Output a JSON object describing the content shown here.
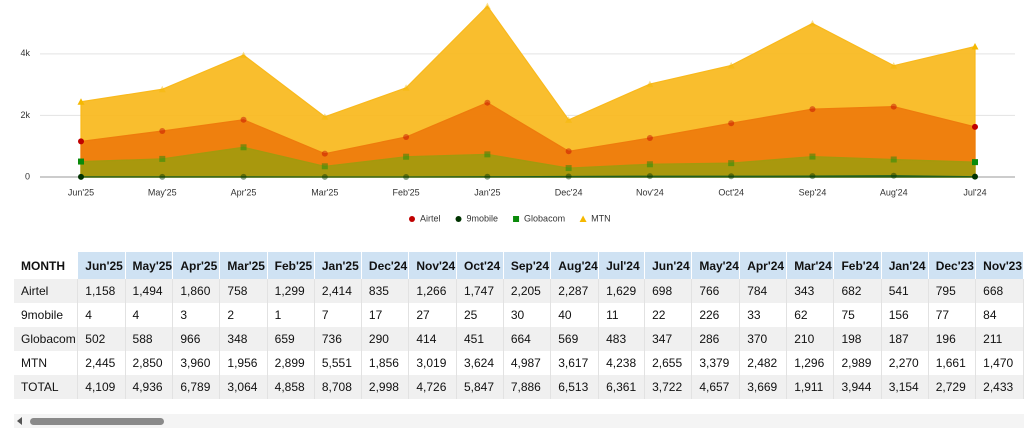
{
  "chart_data": {
    "type": "area",
    "categories": [
      "Jun'25",
      "May'25",
      "Apr'25",
      "Mar'25",
      "Feb'25",
      "Jan'25",
      "Dec'24",
      "Nov'24",
      "Oct'24",
      "Sep'24",
      "Aug'24",
      "Jul'24"
    ],
    "series": [
      {
        "name": "Airtel",
        "color": "#ee7b0c",
        "marker_color": "#c00000",
        "marker": "circle",
        "values": [
          1158,
          1494,
          1860,
          758,
          1299,
          2414,
          835,
          1266,
          1747,
          2205,
          2287,
          1629
        ]
      },
      {
        "name": "9mobile",
        "color": "#1f5f1f",
        "marker_color": "#003300",
        "marker": "circle",
        "values": [
          4,
          4,
          3,
          2,
          1,
          7,
          17,
          27,
          25,
          30,
          40,
          11
        ]
      },
      {
        "name": "Globacom",
        "color": "#a39a0d",
        "marker_color": "#0a8a0a",
        "marker": "square",
        "values": [
          502,
          588,
          966,
          348,
          659,
          736,
          290,
          414,
          451,
          664,
          569,
          483
        ]
      },
      {
        "name": "MTN",
        "color": "#f9b91c",
        "marker_color": "#f5b800",
        "marker": "triangle",
        "values": [
          2445,
          2850,
          3960,
          1956,
          2899,
          5551,
          1856,
          3019,
          3624,
          4987,
          3617,
          4238
        ]
      }
    ],
    "ylim": [
      0,
      5750
    ],
    "yticks": [
      0,
      {
        "value": 2000,
        "label": "2k"
      },
      {
        "value": 4000,
        "label": "4k"
      }
    ],
    "grid": true,
    "legend": "bottom"
  },
  "table": {
    "header": [
      "MONTH",
      "Jun'25",
      "May'25",
      "Apr'25",
      "Mar'25",
      "Feb'25",
      "Jan'25",
      "Dec'24",
      "Nov'24",
      "Oct'24",
      "Sep'24",
      "Aug'24",
      "Jul'24",
      "Jun'24",
      "May'24",
      "Apr'24",
      "Mar'24",
      "Feb'24",
      "Jan'24",
      "Dec'23",
      "Nov'23"
    ],
    "rows": [
      [
        "Airtel",
        "1,158",
        "1,494",
        "1,860",
        "758",
        "1,299",
        "2,414",
        "835",
        "1,266",
        "1,747",
        "2,205",
        "2,287",
        "1,629",
        "698",
        "766",
        "784",
        "343",
        "682",
        "541",
        "795",
        "668"
      ],
      [
        "9mobile",
        "4",
        "4",
        "3",
        "2",
        "1",
        "7",
        "17",
        "27",
        "25",
        "30",
        "40",
        "11",
        "22",
        "226",
        "33",
        "62",
        "75",
        "156",
        "77",
        "84"
      ],
      [
        "Globacom",
        "502",
        "588",
        "966",
        "348",
        "659",
        "736",
        "290",
        "414",
        "451",
        "664",
        "569",
        "483",
        "347",
        "286",
        "370",
        "210",
        "198",
        "187",
        "196",
        "211"
      ],
      [
        "MTN",
        "2,445",
        "2,850",
        "3,960",
        "1,956",
        "2,899",
        "5,551",
        "1,856",
        "3,019",
        "3,624",
        "4,987",
        "3,617",
        "4,238",
        "2,655",
        "3,379",
        "2,482",
        "1,296",
        "2,989",
        "2,270",
        "1,661",
        "1,470"
      ],
      [
        "TOTAL",
        "4,109",
        "4,936",
        "6,789",
        "3,064",
        "4,858",
        "8,708",
        "2,998",
        "4,726",
        "5,847",
        "7,886",
        "6,513",
        "6,361",
        "3,722",
        "4,657",
        "3,669",
        "1,911",
        "3,944",
        "3,154",
        "2,729",
        "2,433"
      ]
    ]
  }
}
